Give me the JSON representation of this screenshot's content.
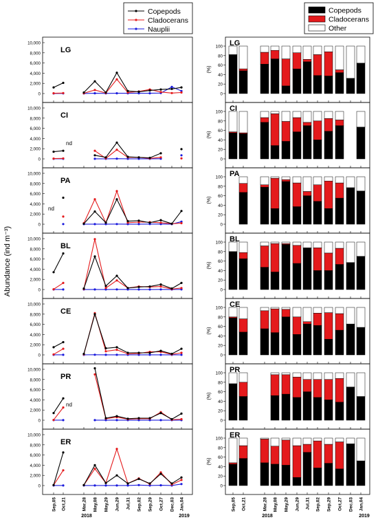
{
  "figure": {
    "ylabel_left": "Abundance (ind m⁻³)",
    "ylabel_right": "(%)",
    "year_labels": [
      "2018",
      "2019"
    ]
  },
  "colors": {
    "copepods": "#000000",
    "cladocerans": "#e41a1c",
    "nauplii": "#1a1adc",
    "other": "#ffffff"
  },
  "chart_data": [
    {
      "type": "line",
      "panel": "abundance",
      "x": [
        "Sep,05",
        "Oct,21",
        "Mar,28",
        "May,08",
        "May,29",
        "Jun,29",
        "Jul,31",
        "Sep,02",
        "Sep,29",
        "Oct,27",
        "Dec,03",
        "Jan,04"
      ],
      "year_labels": [
        "2018",
        "2019"
      ],
      "ylabel": "Abundance (ind m⁻³)",
      "ylim": [
        0,
        10000
      ],
      "yticks": [
        "0",
        "2,000",
        "4,000",
        "6,000",
        "8,000",
        "10,000"
      ],
      "legend": {
        "placement": "top-left",
        "entries": [
          "Copepods",
          "Cladocerans",
          "Nauplii"
        ]
      },
      "stations": [
        {
          "site": "LG",
          "note": "",
          "series": [
            {
              "name": "Copepods",
              "values": [
                1200,
                2100,
                200,
                2400,
                200,
                4100,
                500,
                350,
                600,
                800,
                900,
                1200
              ]
            },
            {
              "name": "Cladocerans",
              "values": [
                50,
                100,
                50,
                700,
                100,
                2800,
                200,
                400,
                800,
                300,
                100,
                200
              ]
            },
            {
              "name": "Nauplii",
              "values": [
                20,
                30,
                20,
                50,
                30,
                60,
                50,
                50,
                50,
                100,
                1300,
                500
              ]
            }
          ]
        },
        {
          "site": "CI",
          "note": "nd",
          "series": [
            {
              "name": "Copepods",
              "values": [
                1400,
                1600,
                null,
                700,
                300,
                3200,
                400,
                300,
                200,
                1100,
                null,
                1900
              ]
            },
            {
              "name": "Cladocerans",
              "values": [
                50,
                100,
                null,
                1600,
                100,
                1800,
                300,
                300,
                100,
                300,
                null,
                100
              ]
            },
            {
              "name": "Nauplii",
              "values": [
                20,
                20,
                null,
                20,
                20,
                40,
                20,
                20,
                20,
                30,
                null,
                700
              ]
            }
          ]
        },
        {
          "site": "PA",
          "note": "nd",
          "series": [
            {
              "name": "Copepods",
              "values": [
                null,
                5200,
                100,
                2500,
                300,
                4900,
                600,
                700,
                300,
                800,
                100,
                2600
              ]
            },
            {
              "name": "Cladocerans",
              "values": [
                null,
                1500,
                200,
                4900,
                300,
                6500,
                300,
                400,
                400,
                300,
                100,
                200
              ]
            },
            {
              "name": "Nauplii",
              "values": [
                null,
                30,
                20,
                20,
                20,
                30,
                20,
                20,
                30,
                30,
                20,
                500
              ]
            }
          ]
        },
        {
          "site": "BL",
          "note": "",
          "series": [
            {
              "name": "Copepods",
              "values": [
                3400,
                7100,
                200,
                6500,
                700,
                2700,
                300,
                500,
                600,
                1000,
                200,
                1300
              ]
            },
            {
              "name": "Cladocerans",
              "values": [
                50,
                1300,
                100,
                9900,
                300,
                1800,
                300,
                600,
                500,
                600,
                100,
                300
              ]
            },
            {
              "name": "Nauplii",
              "values": [
                20,
                20,
                20,
                20,
                20,
                30,
                20,
                20,
                20,
                30,
                20,
                30
              ]
            }
          ]
        },
        {
          "site": "CE",
          "note": "",
          "series": [
            {
              "name": "Copepods",
              "values": [
                1500,
                2500,
                200,
                8000,
                1300,
                1500,
                400,
                400,
                400,
                800,
                200,
                1200
              ]
            },
            {
              "name": "Cladocerans",
              "values": [
                100,
                1200,
                100,
                8200,
                700,
                1000,
                200,
                300,
                600,
                600,
                100,
                400
              ]
            },
            {
              "name": "Nauplii",
              "values": [
                20,
                20,
                20,
                30,
                20,
                20,
                20,
                20,
                20,
                20,
                20,
                20
              ]
            }
          ]
        },
        {
          "site": "PR",
          "note": "nd",
          "series": [
            {
              "name": "Copepods",
              "values": [
                1400,
                4300,
                null,
                10200,
                400,
                800,
                300,
                400,
                400,
                1400,
                200,
                1300
              ]
            },
            {
              "name": "Cladocerans",
              "values": [
                50,
                2500,
                null,
                9000,
                300,
                600,
                200,
                300,
                300,
                1600,
                100,
                200
              ]
            },
            {
              "name": "Nauplii",
              "values": [
                20,
                20,
                null,
                20,
                20,
                20,
                20,
                20,
                20,
                20,
                20,
                20
              ]
            }
          ]
        },
        {
          "site": "ER",
          "note": "",
          "series": [
            {
              "name": "Copepods",
              "values": [
                100,
                6500,
                100,
                4000,
                500,
                2000,
                400,
                1300,
                400,
                2300,
                400,
                1600
              ]
            },
            {
              "name": "Cladocerans",
              "values": [
                100,
                3000,
                100,
                3300,
                500,
                7200,
                400,
                1400,
                300,
                2600,
                200,
                1100
              ]
            },
            {
              "name": "Nauplii",
              "values": [
                20,
                20,
                20,
                20,
                20,
                20,
                20,
                100,
                20,
                50,
                20,
                300
              ]
            }
          ]
        }
      ]
    },
    {
      "type": "bar",
      "stacked": true,
      "panel": "composition",
      "categories": [
        "Sep,05",
        "Oct,21",
        "Mar,28",
        "May,08",
        "May,29",
        "Jun,29",
        "Jul,31",
        "Sep,02",
        "Sep,29",
        "Oct,27",
        "Dec,03",
        "Jan,04"
      ],
      "year_labels": [
        "2018",
        "2019"
      ],
      "ylabel": "(%)",
      "ylim": [
        0,
        100
      ],
      "yticks": [
        "0",
        "20",
        "40",
        "60",
        "80",
        "100"
      ],
      "legend": {
        "placement": "top",
        "entries": [
          "Copepods",
          "Cladocerans",
          "Other"
        ]
      },
      "stations": [
        {
          "site": "LG",
          "series": [
            {
              "name": "Copepods",
              "values": [
                82,
                48,
                62,
                73,
                16,
                52,
                67,
                38,
                37,
                44,
                32,
                64
              ]
            },
            {
              "name": "Cladocerans",
              "values": [
                0,
                4,
                25,
                18,
                57,
                34,
                5,
                44,
                51,
                6,
                0,
                0
              ]
            },
            {
              "name": "Other",
              "values": [
                18,
                48,
                13,
                9,
                27,
                14,
                28,
                18,
                12,
                50,
                68,
                36
              ]
            }
          ]
        },
        {
          "site": "CI",
          "series": [
            {
              "name": "Copepods",
              "values": [
                55,
                53,
                77,
                28,
                37,
                57,
                70,
                40,
                58,
                70,
                null,
                67
              ]
            },
            {
              "name": "Cladocerans",
              "values": [
                2,
                2,
                10,
                67,
                42,
                30,
                7,
                40,
                27,
                12,
                null,
                0
              ]
            },
            {
              "name": "Other",
              "values": [
                43,
                45,
                13,
                5,
                21,
                13,
                23,
                20,
                15,
                18,
                null,
                33
              ]
            }
          ]
        },
        {
          "site": "PA",
          "series": [
            {
              "name": "Copepods",
              "values": [
                null,
                67,
                78,
                33,
                90,
                37,
                60,
                48,
                33,
                55,
                77,
                70
              ]
            },
            {
              "name": "Cladocerans",
              "values": [
                null,
                19,
                5,
                64,
                4,
                50,
                9,
                35,
                58,
                32,
                0,
                0
              ]
            },
            {
              "name": "Other",
              "values": [
                null,
                14,
                17,
                3,
                6,
                13,
                31,
                17,
                9,
                13,
                23,
                30
              ]
            }
          ]
        },
        {
          "site": "BL",
          "series": [
            {
              "name": "Copepods",
              "values": [
                80,
                65,
                47,
                37,
                95,
                55,
                88,
                40,
                40,
                53,
                57,
                70
              ]
            },
            {
              "name": "Cladocerans",
              "values": [
                0,
                13,
                45,
                60,
                2,
                38,
                0,
                48,
                37,
                34,
                0,
                0
              ]
            },
            {
              "name": "Other",
              "values": [
                20,
                22,
                8,
                3,
                3,
                7,
                12,
                12,
                23,
                13,
                43,
                30
              ]
            }
          ]
        },
        {
          "site": "CE",
          "series": [
            {
              "name": "Copepods",
              "values": [
                78,
                48,
                55,
                47,
                80,
                43,
                65,
                62,
                33,
                52,
                65,
                58
              ]
            },
            {
              "name": "Cladocerans",
              "values": [
                2,
                28,
                38,
                50,
                16,
                37,
                5,
                26,
                56,
                35,
                0,
                0
              ]
            },
            {
              "name": "Other",
              "values": [
                20,
                24,
                7,
                3,
                4,
                20,
                30,
                12,
                11,
                13,
                35,
                42
              ]
            }
          ]
        },
        {
          "site": "PR",
          "series": [
            {
              "name": "Copepods",
              "values": [
                77,
                50,
                null,
                52,
                55,
                48,
                60,
                48,
                43,
                38,
                70,
                50
              ]
            },
            {
              "name": "Cladocerans",
              "values": [
                0,
                30,
                null,
                44,
                41,
                43,
                26,
                38,
                43,
                50,
                0,
                0
              ]
            },
            {
              "name": "Other",
              "values": [
                23,
                20,
                null,
                4,
                4,
                9,
                14,
                14,
                14,
                12,
                30,
                50
              ]
            }
          ]
        },
        {
          "site": "ER",
          "series": [
            {
              "name": "Copepods",
              "values": [
                45,
                57,
                48,
                45,
                43,
                17,
                70,
                37,
                47,
                35,
                88,
                52
              ]
            },
            {
              "name": "Cladocerans",
              "values": [
                3,
                27,
                50,
                38,
                53,
                67,
                17,
                57,
                40,
                57,
                0,
                0
              ]
            },
            {
              "name": "Other",
              "values": [
                52,
                16,
                2,
                17,
                4,
                16,
                13,
                6,
                13,
                8,
                12,
                48
              ]
            }
          ]
        }
      ]
    }
  ]
}
